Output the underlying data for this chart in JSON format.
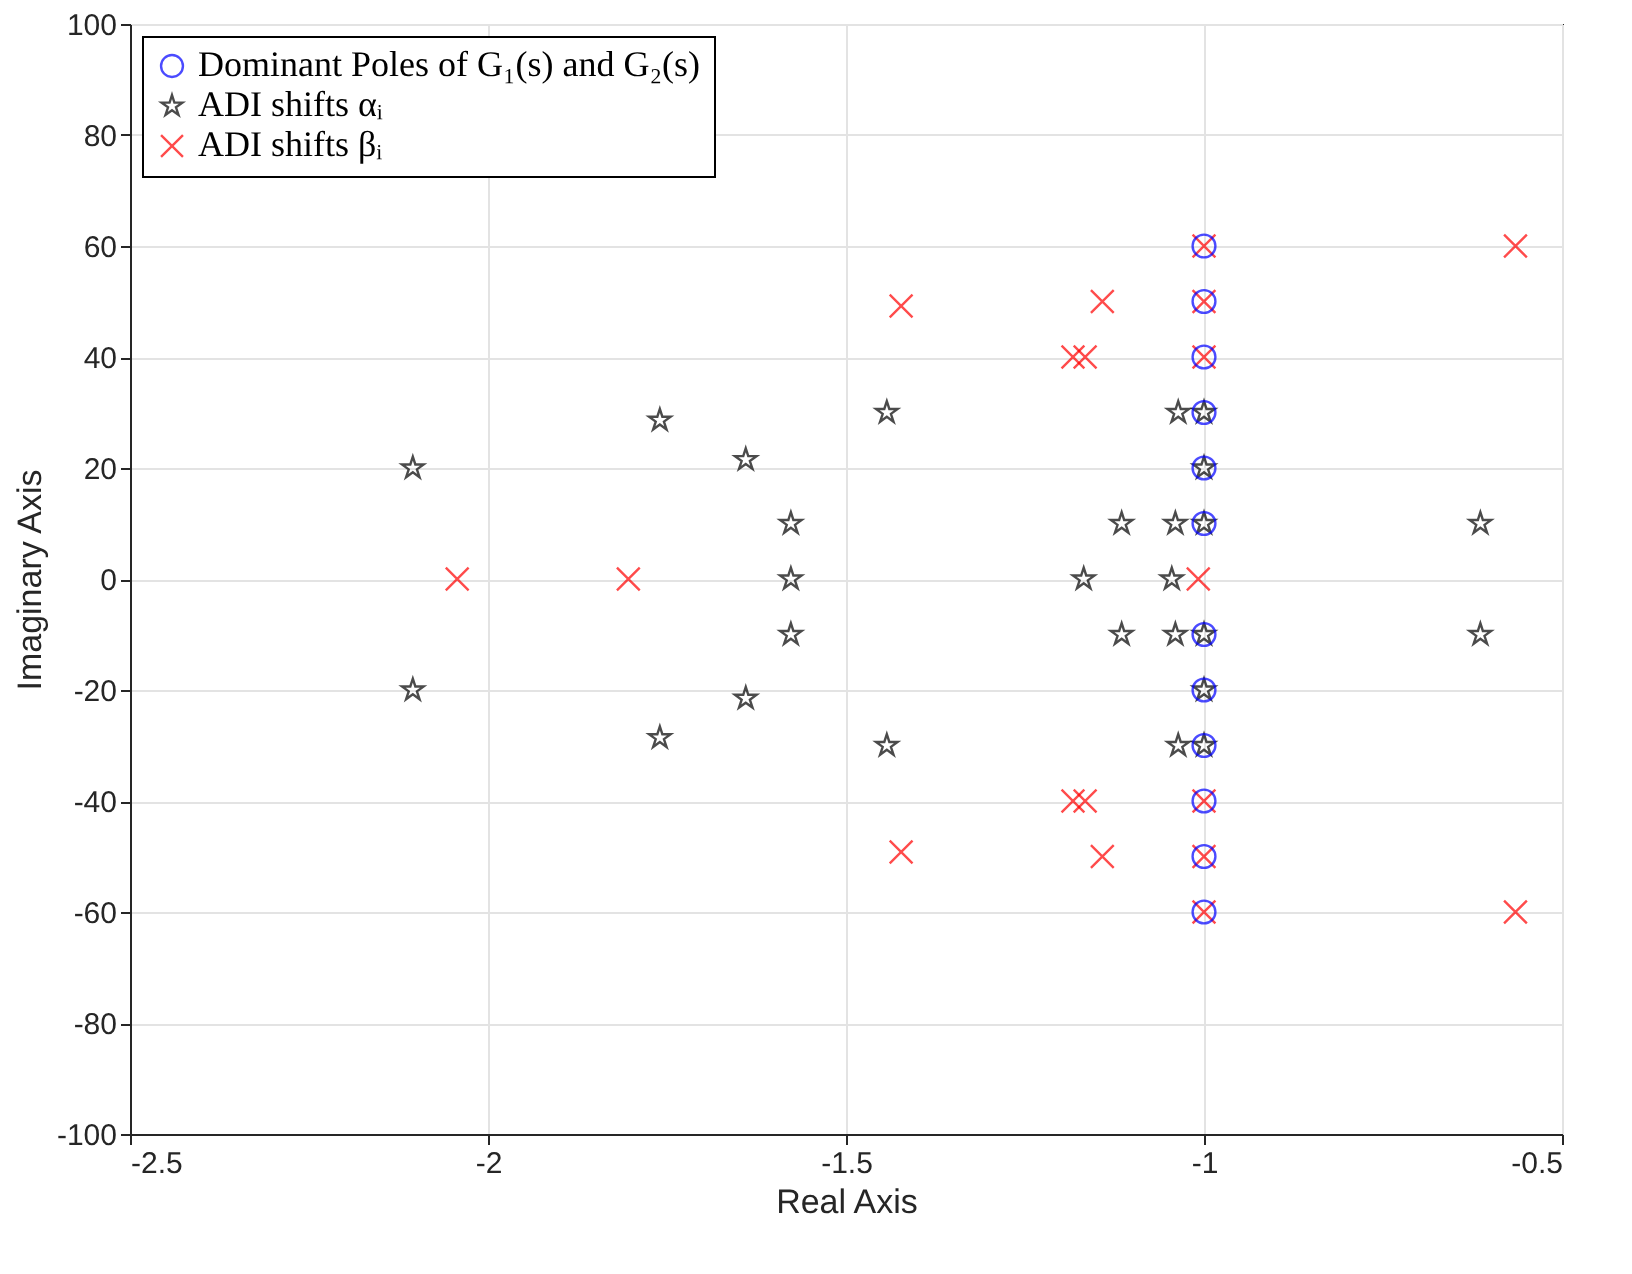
{
  "chart_data": {
    "type": "scatter",
    "xlabel": "Real Axis",
    "ylabel": "Imaginary Axis",
    "xlim": [
      -2.5,
      -0.5
    ],
    "xticks": [
      -2.5,
      -2,
      -1.5,
      -1,
      -0.5
    ],
    "ylim": [
      -100,
      100
    ],
    "yticks": [
      -100,
      -80,
      -60,
      -40,
      -20,
      0,
      20,
      40,
      60,
      80,
      100
    ],
    "grid": true,
    "legend": "top left",
    "series": [
      {
        "name": "Dominant Poles of G₁(s) and G₂(s)",
        "color": "#0000ff",
        "marker": "circle",
        "x": [
          -1,
          -1,
          -1,
          -1,
          -1,
          -1,
          -1,
          -1,
          -1,
          -1,
          -1,
          -1
        ],
        "values": [
          60,
          50,
          40,
          30,
          20,
          10,
          -10,
          -20,
          -30,
          -40,
          -50,
          -60
        ]
      },
      {
        "name": "ADI shifts αᵢ",
        "color": "#000000",
        "marker": "star",
        "x": [
          -2.105,
          -2.105,
          -1.76,
          -1.76,
          -1.64,
          -1.64,
          -1.577,
          -1.577,
          -1.577,
          -1.443,
          -1.443,
          -1.036,
          -1.036,
          -1.115,
          -1.115,
          -1.04,
          -1.04,
          -1.168,
          -1.045,
          -0.614,
          -0.614,
          -1,
          -1,
          -1,
          -1,
          -1,
          -1
        ],
        "values": [
          20,
          -20,
          28.6,
          -28.6,
          21.5,
          -21.5,
          10,
          0,
          -10,
          30,
          -30,
          30,
          -30,
          10,
          -10,
          10,
          -10,
          0,
          0,
          10,
          -10,
          30,
          20,
          10,
          -10,
          -20,
          -30
        ]
      },
      {
        "name": "ADI shifts βᵢ",
        "color": "#ff0000",
        "marker": "cross",
        "x": [
          -1,
          -1,
          -1,
          -1,
          -1,
          -1,
          -0.565,
          -0.565,
          -1.142,
          -1.142,
          -1.183,
          -1.183,
          -1.166,
          -1.166,
          -1.423,
          -1.423,
          -2.043,
          -1.804,
          -1.008
        ],
        "values": [
          60,
          50,
          40,
          -40,
          -50,
          -60,
          60,
          -60,
          50,
          -50,
          40,
          -40,
          40,
          -40,
          49.2,
          -49.2,
          0,
          0,
          0
        ]
      }
    ]
  }
}
